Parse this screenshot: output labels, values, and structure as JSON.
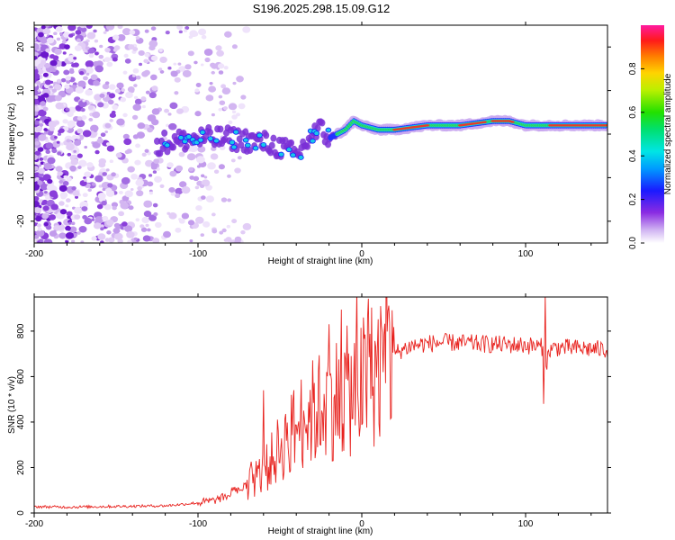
{
  "title": "S196.2025.298.15.09.G12",
  "colors": {
    "snr_line": "#e8231f",
    "scatter_low": "#d8c4ef",
    "scatter_high": "#5a14c8",
    "band_core": "#e83a2a",
    "band_mid": "#2ad94a",
    "band_cyan": "#18c8e8"
  },
  "chart_data": [
    {
      "type": "heatmap",
      "xlabel": "Height of straight line (km)",
      "ylabel": "Frequency (Hz)",
      "xlim": [
        -200,
        150
      ],
      "ylim": [
        -25,
        25
      ],
      "x_ticks": [
        -200,
        -100,
        0,
        100
      ],
      "x_tick_labels": [
        "-200",
        "-100",
        "0",
        "100"
      ],
      "y_ticks": [
        -20,
        -10,
        0,
        10,
        20
      ],
      "y_tick_labels": [
        "-20",
        "-10",
        "0",
        "10",
        "20"
      ],
      "colorbar": {
        "label": "Normalized spectral amplitude",
        "range": [
          0,
          1
        ],
        "ticks": [
          0.0,
          0.2,
          0.4,
          0.6,
          0.8
        ],
        "tick_labels": [
          "0.0",
          "0.2",
          "0.4",
          "0.6",
          "0.8"
        ],
        "colormap": "rainbow (white-violet-blue-cyan-green-yellow-red-magenta)"
      },
      "ridge": {
        "x": [
          -120,
          -100,
          -80,
          -60,
          -50,
          -40,
          -30,
          -25,
          -20,
          -15,
          -10,
          -5,
          0,
          10,
          20,
          40,
          60,
          80,
          90,
          100,
          110,
          120,
          150
        ],
        "y": [
          -2,
          -1,
          -1,
          -2,
          -3,
          -5,
          0,
          1,
          -1,
          0,
          1,
          3,
          2,
          1,
          1,
          2,
          2,
          3,
          3,
          2,
          2,
          2,
          2
        ]
      }
    },
    {
      "type": "line",
      "xlabel": "Height of straight line (km)",
      "ylabel": "SNR (10 * v/v)",
      "xlim": [
        -200,
        150
      ],
      "ylim": [
        0,
        950
      ],
      "x_ticks": [
        -200,
        -100,
        0,
        100
      ],
      "x_tick_labels": [
        "-200",
        "-100",
        "0",
        "100"
      ],
      "y_ticks": [
        0,
        200,
        400,
        600,
        800
      ],
      "y_tick_labels": [
        "0",
        "200",
        "400",
        "600",
        "800"
      ],
      "series": [
        {
          "name": "SNR",
          "x": [
            -200,
            -180,
            -160,
            -140,
            -120,
            -110,
            -100,
            -90,
            -80,
            -70,
            -60,
            -55,
            -50,
            -45,
            -40,
            -35,
            -30,
            -25,
            -20,
            -15,
            -10,
            -5,
            0,
            5,
            10,
            15,
            20,
            25,
            30,
            40,
            50,
            60,
            70,
            80,
            90,
            100,
            110,
            112,
            115,
            120,
            130,
            140,
            150
          ],
          "y": [
            28,
            26,
            28,
            30,
            32,
            38,
            45,
            55,
            80,
            120,
            180,
            230,
            290,
            330,
            380,
            420,
            440,
            470,
            500,
            510,
            530,
            540,
            560,
            600,
            640,
            680,
            700,
            720,
            735,
            745,
            750,
            748,
            745,
            742,
            740,
            738,
            730,
            640,
            720,
            728,
            725,
            722,
            718
          ]
        }
      ],
      "peaks": [
        {
          "x": -20,
          "y": 830
        },
        {
          "x": -60,
          "y": 540
        },
        {
          "x": 112,
          "y": 960
        },
        {
          "x": 111,
          "y": 480
        }
      ]
    }
  ]
}
